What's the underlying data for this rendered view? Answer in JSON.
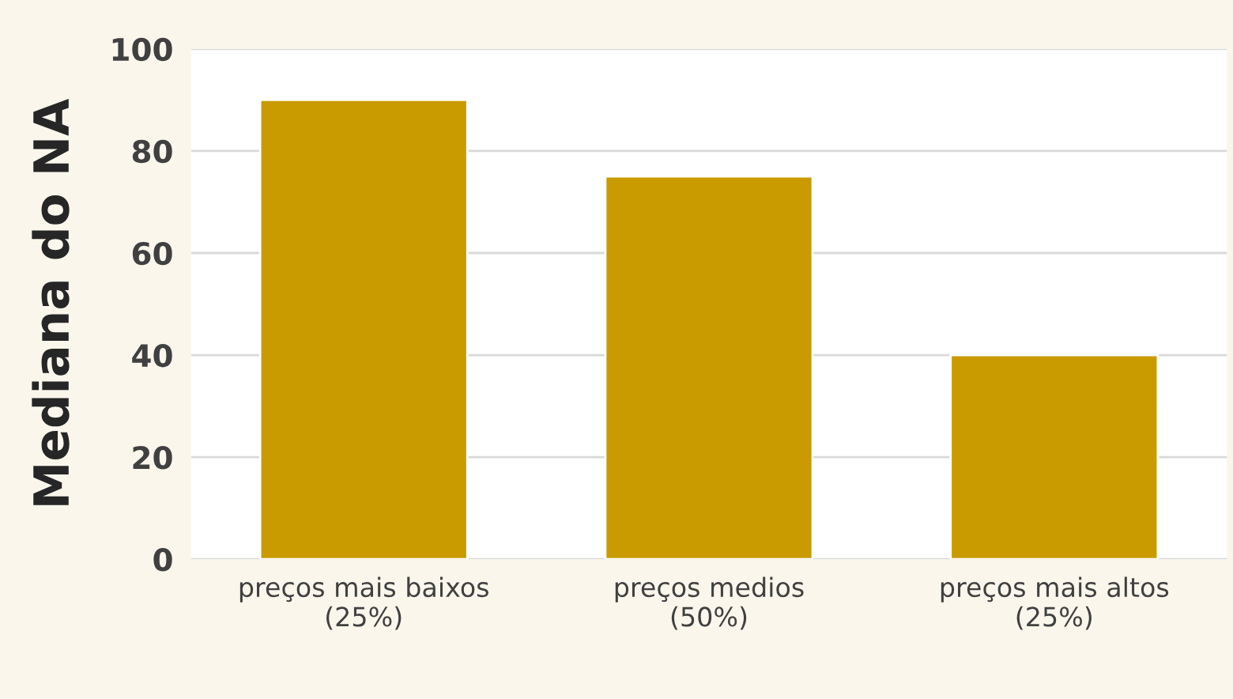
{
  "chart_data": {
    "type": "bar",
    "ylabel": "Mediana do NA",
    "categories": [
      "preços mais baixos\n(25%)",
      "preços medios\n(50%)",
      "preços mais altos\n(25%)"
    ],
    "values": [
      90,
      75,
      40
    ],
    "color": "#c99b00",
    "ylim": [
      0,
      100
    ],
    "yticks": [
      0,
      20,
      40,
      60,
      80,
      100
    ],
    "grid": "y"
  }
}
